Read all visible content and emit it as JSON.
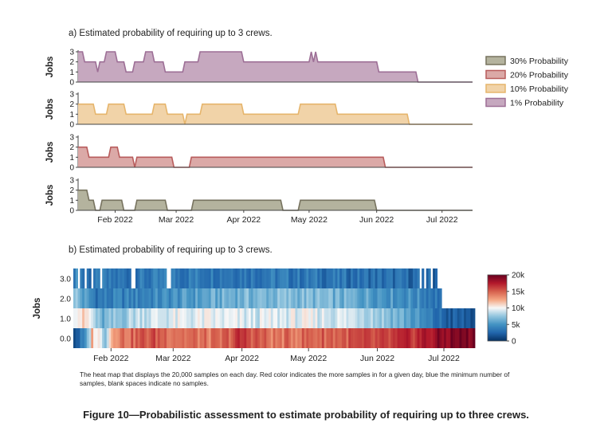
{
  "chart_data": [
    {
      "type": "area",
      "panel": "a",
      "title": "a) Estimated probability of requiring up to 3 crews.",
      "ylabel": "Jobs",
      "ylim": [
        0,
        3
      ],
      "yticks": [
        "0",
        "1",
        "2",
        "3"
      ],
      "x_range": [
        "2022-01-15",
        "2022-07-15"
      ],
      "x_ticks": [
        "2022-02-01",
        "2022-03-01",
        "2022-04-01",
        "2022-05-01",
        "2022-06-01",
        "2022-07-01"
      ],
      "x_tick_labels": [
        "Feb 2022",
        "Mar 2022",
        "Apr 2022",
        "May 2022",
        "Jun 2022",
        "Jul 2022"
      ],
      "legend_position": "right",
      "series": [
        {
          "name": "1% Probability",
          "color": "#9d6f96",
          "fill": "#c6a8bf",
          "points": [
            [
              "2022-01-15",
              3
            ],
            [
              "2022-01-17",
              3
            ],
            [
              "2022-01-18",
              2
            ],
            [
              "2022-01-23",
              2
            ],
            [
              "2022-01-24",
              1
            ],
            [
              "2022-01-25",
              2
            ],
            [
              "2022-01-27",
              2
            ],
            [
              "2022-01-28",
              3
            ],
            [
              "2022-02-01",
              3
            ],
            [
              "2022-02-02",
              2
            ],
            [
              "2022-02-05",
              2
            ],
            [
              "2022-02-06",
              1
            ],
            [
              "2022-02-09",
              1
            ],
            [
              "2022-02-10",
              2
            ],
            [
              "2022-02-14",
              2
            ],
            [
              "2022-02-15",
              3
            ],
            [
              "2022-02-18",
              3
            ],
            [
              "2022-02-19",
              2
            ],
            [
              "2022-02-23",
              2
            ],
            [
              "2022-02-24",
              1
            ],
            [
              "2022-03-04",
              1
            ],
            [
              "2022-03-05",
              2
            ],
            [
              "2022-03-11",
              2
            ],
            [
              "2022-03-12",
              3
            ],
            [
              "2022-03-31",
              3
            ],
            [
              "2022-04-01",
              2
            ],
            [
              "2022-05-01",
              2
            ],
            [
              "2022-05-02",
              3
            ],
            [
              "2022-05-03",
              2
            ],
            [
              "2022-05-04",
              3
            ],
            [
              "2022-05-05",
              2
            ],
            [
              "2022-06-01",
              2
            ],
            [
              "2022-06-02",
              1
            ],
            [
              "2022-06-19",
              1
            ],
            [
              "2022-06-20",
              0
            ],
            [
              "2022-07-15",
              0
            ]
          ]
        },
        {
          "name": "10% Probability",
          "color": "#e6b56c",
          "fill": "#f1d3a8",
          "points": [
            [
              "2022-01-15",
              2
            ],
            [
              "2022-01-22",
              2
            ],
            [
              "2022-01-23",
              1
            ],
            [
              "2022-01-28",
              1
            ],
            [
              "2022-01-29",
              2
            ],
            [
              "2022-02-05",
              2
            ],
            [
              "2022-02-06",
              1
            ],
            [
              "2022-02-18",
              1
            ],
            [
              "2022-02-19",
              2
            ],
            [
              "2022-02-24",
              2
            ],
            [
              "2022-02-25",
              1
            ],
            [
              "2022-03-04",
              1
            ],
            [
              "2022-03-05",
              0
            ],
            [
              "2022-03-06",
              1
            ],
            [
              "2022-03-12",
              1
            ],
            [
              "2022-03-13",
              2
            ],
            [
              "2022-03-31",
              2
            ],
            [
              "2022-04-01",
              1
            ],
            [
              "2022-04-26",
              1
            ],
            [
              "2022-04-27",
              2
            ],
            [
              "2022-05-13",
              2
            ],
            [
              "2022-05-14",
              1
            ],
            [
              "2022-06-15",
              1
            ],
            [
              "2022-06-16",
              0
            ],
            [
              "2022-07-15",
              0
            ]
          ]
        },
        {
          "name": "20% Probability",
          "color": "#b85c5c",
          "fill": "#dba9a7",
          "points": [
            [
              "2022-01-15",
              2
            ],
            [
              "2022-01-19",
              2
            ],
            [
              "2022-01-20",
              1
            ],
            [
              "2022-01-29",
              1
            ],
            [
              "2022-01-30",
              2
            ],
            [
              "2022-02-02",
              2
            ],
            [
              "2022-02-03",
              1
            ],
            [
              "2022-02-09",
              1
            ],
            [
              "2022-02-10",
              0
            ],
            [
              "2022-02-11",
              1
            ],
            [
              "2022-02-27",
              1
            ],
            [
              "2022-02-28",
              0
            ],
            [
              "2022-03-07",
              0
            ],
            [
              "2022-03-08",
              1
            ],
            [
              "2022-06-04",
              1
            ],
            [
              "2022-06-05",
              0
            ],
            [
              "2022-07-15",
              0
            ]
          ]
        },
        {
          "name": "30% Probability",
          "color": "#77735f",
          "fill": "#b4b39e",
          "points": [
            [
              "2022-01-15",
              2
            ],
            [
              "2022-01-19",
              2
            ],
            [
              "2022-01-20",
              1
            ],
            [
              "2022-01-22",
              1
            ],
            [
              "2022-01-23",
              0
            ],
            [
              "2022-01-25",
              0
            ],
            [
              "2022-01-26",
              1
            ],
            [
              "2022-02-04",
              1
            ],
            [
              "2022-02-05",
              0
            ],
            [
              "2022-02-10",
              0
            ],
            [
              "2022-02-11",
              1
            ],
            [
              "2022-02-24",
              1
            ],
            [
              "2022-02-25",
              0
            ],
            [
              "2022-03-08",
              0
            ],
            [
              "2022-03-09",
              1
            ],
            [
              "2022-04-18",
              1
            ],
            [
              "2022-04-19",
              0
            ],
            [
              "2022-04-26",
              0
            ],
            [
              "2022-04-27",
              1
            ],
            [
              "2022-05-31",
              1
            ],
            [
              "2022-06-01",
              0
            ],
            [
              "2022-07-15",
              0
            ]
          ]
        }
      ]
    },
    {
      "type": "heatmap",
      "panel": "b",
      "title": "b) Estimated probability of requiring up to 3 crews.",
      "ylabel": "Jobs",
      "y_categories": [
        "3.0",
        "2.0",
        "1.0",
        "0.0"
      ],
      "x_range": [
        "2022-01-15",
        "2022-07-15"
      ],
      "x_ticks": [
        "2022-02-01",
        "2022-03-01",
        "2022-04-01",
        "2022-05-01",
        "2022-06-01",
        "2022-07-01"
      ],
      "x_tick_labels": [
        "Feb 2022",
        "Mar 2022",
        "Apr 2022",
        "May 2022",
        "Jun 2022",
        "Jul 2022"
      ],
      "colorbar": {
        "min": 0,
        "max": 20000,
        "ticks": [
          "0",
          "5k",
          "10k",
          "15k",
          "20k"
        ],
        "colors": [
          "#053061",
          "#2166ac",
          "#4393c3",
          "#92c5de",
          "#f7f7f7",
          "#f4a582",
          "#d6604d",
          "#b2182b",
          "#67001f"
        ]
      },
      "rows": [
        {
          "label": "3.0",
          "end": "2022-06-28",
          "gaps": [
            [
              "2022-01-17",
              "2022-01-18"
            ],
            [
              "2022-01-20",
              "2022-01-21"
            ],
            [
              "2022-01-23",
              "2022-01-24"
            ],
            [
              "2022-01-27",
              "2022-01-28"
            ],
            [
              "2022-02-10",
              "2022-02-12"
            ],
            [
              "2022-02-26",
              "2022-02-28"
            ],
            [
              "2022-06-20",
              "2022-06-21"
            ],
            [
              "2022-06-22",
              "2022-06-23"
            ],
            [
              "2022-06-25",
              "2022-06-26"
            ]
          ],
          "knots": [
            [
              0,
              4500
            ],
            [
              5,
              3000
            ],
            [
              20,
              3200
            ],
            [
              60,
              3800
            ],
            [
              100,
              3500
            ],
            [
              150,
              2800
            ],
            [
              165,
              2500
            ]
          ]
        },
        {
          "label": "2.0",
          "end": "2022-06-30",
          "gaps": [],
          "knots": [
            [
              0,
              8000
            ],
            [
              3,
              6000
            ],
            [
              10,
              3500
            ],
            [
              40,
              4500
            ],
            [
              70,
              6500
            ],
            [
              100,
              7000
            ],
            [
              130,
              6000
            ],
            [
              155,
              4500
            ],
            [
              167,
              3000
            ]
          ]
        },
        {
          "label": "1.0",
          "end": "2022-07-15",
          "gaps": [],
          "knots": [
            [
              0,
              11000
            ],
            [
              6,
              10500
            ],
            [
              12,
              6000
            ],
            [
              30,
              9000
            ],
            [
              60,
              9500
            ],
            [
              80,
              9000
            ],
            [
              100,
              9500
            ],
            [
              130,
              9000
            ],
            [
              150,
              6000
            ],
            [
              160,
              3500
            ],
            [
              170,
              2000
            ],
            [
              181,
              1800
            ]
          ]
        },
        {
          "label": "0.0",
          "end": "2022-07-15",
          "gaps": [],
          "knots": [
            [
              0,
              1800
            ],
            [
              5,
              4000
            ],
            [
              8,
              12000
            ],
            [
              14,
              8000
            ],
            [
              18,
              14000
            ],
            [
              35,
              15500
            ],
            [
              50,
              14500
            ],
            [
              65,
              14000
            ],
            [
              75,
              16500
            ],
            [
              90,
              14000
            ],
            [
              110,
              15000
            ],
            [
              140,
              15500
            ],
            [
              155,
              17000
            ],
            [
              165,
              18500
            ],
            [
              175,
              19500
            ],
            [
              181,
              19500
            ]
          ]
        }
      ]
    }
  ],
  "caption": "The heat map that displays the 20,000 samples on each day. Red color indicates the more samples in for a given day, blue the minimum number of samples, blank spaces indicate no samples.",
  "figure_title": "Figure 10—Probabilistic assessment to estimate probability of requiring up to three crews."
}
